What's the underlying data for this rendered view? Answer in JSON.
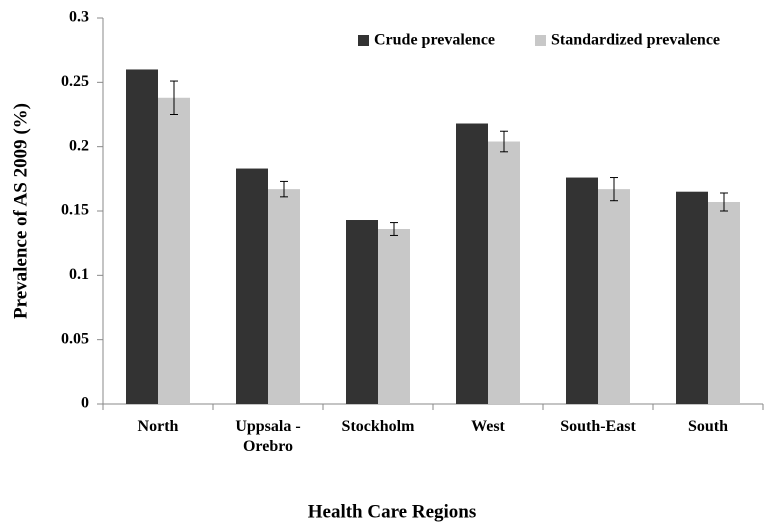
{
  "chart_data": {
    "type": "bar",
    "xlabel": "Health Care Regions",
    "ylabel": "Prevalence of AS 2009 (%)",
    "categories": [
      "North",
      "Uppsala - Orebro",
      "Stockholm",
      "West",
      "South-East",
      "South"
    ],
    "series": [
      {
        "name": "Crude prevalence",
        "color": "#333333",
        "values": [
          0.26,
          0.183,
          0.143,
          0.218,
          0.176,
          0.165
        ]
      },
      {
        "name": "Standardized prevalence",
        "color": "#c8c8c8",
        "values": [
          0.238,
          0.167,
          0.136,
          0.204,
          0.167,
          0.157
        ],
        "errors": [
          0.013,
          0.006,
          0.005,
          0.008,
          0.009,
          0.007
        ]
      }
    ],
    "ylim": [
      0,
      0.3
    ],
    "yticks": [
      0,
      0.05,
      0.1,
      0.15,
      0.2,
      0.25,
      0.3
    ],
    "grid": false,
    "legend": "top-right"
  }
}
